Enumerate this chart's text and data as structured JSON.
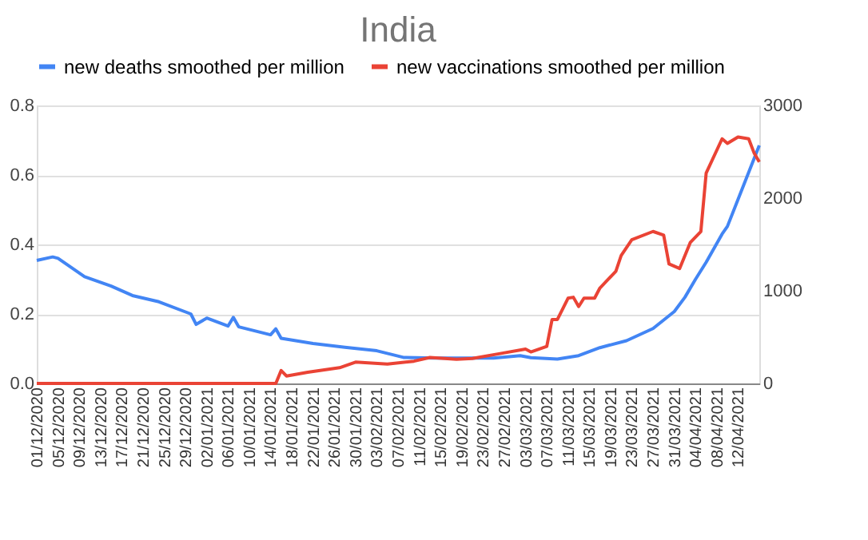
{
  "chart_data": {
    "type": "line",
    "title": "India",
    "legend": "top",
    "grid": "y",
    "marker": "none",
    "line_style": "solid",
    "xlim": [
      "2020-12-01",
      "2021-04-16"
    ],
    "xticks": [
      {
        "value": "2020-12-01",
        "label": "01/12/2020"
      },
      {
        "value": "2020-12-05",
        "label": "05/12/2020"
      },
      {
        "value": "2020-12-09",
        "label": "09/12/2020"
      },
      {
        "value": "2020-12-13",
        "label": "13/12/2020"
      },
      {
        "value": "2020-12-17",
        "label": "17/12/2020"
      },
      {
        "value": "2020-12-21",
        "label": "21/12/2020"
      },
      {
        "value": "2020-12-25",
        "label": "25/12/2020"
      },
      {
        "value": "2020-12-29",
        "label": "29/12/2020"
      },
      {
        "value": "2021-01-02",
        "label": "02/01/2021"
      },
      {
        "value": "2021-01-06",
        "label": "06/01/2021"
      },
      {
        "value": "2021-01-10",
        "label": "10/01/2021"
      },
      {
        "value": "2021-01-14",
        "label": "14/01/2021"
      },
      {
        "value": "2021-01-18",
        "label": "18/01/2021"
      },
      {
        "value": "2021-01-22",
        "label": "22/01/2021"
      },
      {
        "value": "2021-01-26",
        "label": "26/01/2021"
      },
      {
        "value": "2021-01-30",
        "label": "30/01/2021"
      },
      {
        "value": "2021-02-03",
        "label": "03/02/2021"
      },
      {
        "value": "2021-02-07",
        "label": "07/02/2021"
      },
      {
        "value": "2021-02-11",
        "label": "11/02/2021"
      },
      {
        "value": "2021-02-15",
        "label": "15/02/2021"
      },
      {
        "value": "2021-02-19",
        "label": "19/02/2021"
      },
      {
        "value": "2021-02-23",
        "label": "23/02/2021"
      },
      {
        "value": "2021-02-27",
        "label": "27/02/2021"
      },
      {
        "value": "2021-03-03",
        "label": "03/03/2021"
      },
      {
        "value": "2021-03-07",
        "label": "07/03/2021"
      },
      {
        "value": "2021-03-11",
        "label": "11/03/2021"
      },
      {
        "value": "2021-03-15",
        "label": "15/03/2021"
      },
      {
        "value": "2021-03-19",
        "label": "19/03/2021"
      },
      {
        "value": "2021-03-23",
        "label": "23/03/2021"
      },
      {
        "value": "2021-03-27",
        "label": "27/03/2021"
      },
      {
        "value": "2021-03-31",
        "label": "31/03/2021"
      },
      {
        "value": "2021-04-04",
        "label": "04/04/2021"
      },
      {
        "value": "2021-04-08",
        "label": "08/04/2021"
      },
      {
        "value": "2021-04-12",
        "label": "12/04/2021"
      }
    ],
    "ylim": [
      0,
      0.8
    ],
    "yticks": [
      {
        "value": 0,
        "label": "0.0"
      },
      {
        "value": 0.2,
        "label": "0.2"
      },
      {
        "value": 0.4,
        "label": "0.4"
      },
      {
        "value": 0.6,
        "label": "0.6"
      },
      {
        "value": 0.8,
        "label": "0.8"
      }
    ],
    "y2lim": [
      0,
      3000
    ],
    "y2ticks": [
      0,
      1000,
      2000,
      3000
    ],
    "series": [
      {
        "name": "new deaths smoothed per million",
        "color": "#4285f4",
        "x": [
          "2020-12-01",
          "2020-12-04",
          "2020-12-05",
          "2020-12-10",
          "2020-12-15",
          "2020-12-19",
          "2020-12-24",
          "2020-12-30",
          "2020-12-31",
          "2021-01-02",
          "2021-01-06",
          "2021-01-07",
          "2021-01-08",
          "2021-01-14",
          "2021-01-15",
          "2021-01-16",
          "2021-01-22",
          "2021-01-28",
          "2021-02-03",
          "2021-02-08",
          "2021-02-14",
          "2021-02-25",
          "2021-03-02",
          "2021-03-04",
          "2021-03-09",
          "2021-03-13",
          "2021-03-17",
          "2021-03-22",
          "2021-03-27",
          "2021-03-31",
          "2021-04-02",
          "2021-04-04",
          "2021-04-06",
          "2021-04-09",
          "2021-04-10",
          "2021-04-16"
        ],
        "values": [
          0.354,
          0.364,
          0.36,
          0.307,
          0.28,
          0.253,
          0.235,
          0.2,
          0.17,
          0.188,
          0.165,
          0.19,
          0.163,
          0.14,
          0.157,
          0.13,
          0.115,
          0.104,
          0.094,
          0.075,
          0.073,
          0.073,
          0.08,
          0.074,
          0.07,
          0.08,
          0.103,
          0.123,
          0.158,
          0.207,
          0.248,
          0.3,
          0.349,
          0.43,
          0.452,
          0.685
        ]
      },
      {
        "name": "new vaccinations smoothed per million",
        "color": "#ea4335",
        "axis": "y2",
        "x": [
          "2020-12-01",
          "2021-01-15",
          "2021-01-16",
          "2021-01-17",
          "2021-01-21",
          "2021-01-27",
          "2021-01-30",
          "2021-02-05",
          "2021-02-10",
          "2021-02-13",
          "2021-02-18",
          "2021-02-21",
          "2021-02-26",
          "2021-03-03",
          "2021-03-04",
          "2021-03-07",
          "2021-03-08",
          "2021-03-09",
          "2021-03-11",
          "2021-03-12",
          "2021-03-13",
          "2021-03-14",
          "2021-03-16",
          "2021-03-17",
          "2021-03-20",
          "2021-03-21",
          "2021-03-23",
          "2021-03-27",
          "2021-03-29",
          "2021-03-30",
          "2021-04-01",
          "2021-04-03",
          "2021-04-05",
          "2021-04-06",
          "2021-04-09",
          "2021-04-10",
          "2021-04-12",
          "2021-04-14",
          "2021-04-15",
          "2021-04-16"
        ],
        "values": [
          0,
          0,
          140,
          80,
          120,
          170,
          230,
          210,
          240,
          280,
          260,
          270,
          320,
          370,
          340,
          400,
          690,
          690,
          920,
          930,
          830,
          920,
          920,
          1030,
          1210,
          1380,
          1550,
          1640,
          1600,
          1290,
          1240,
          1520,
          1640,
          2270,
          2640,
          2590,
          2660,
          2640,
          2490,
          2390
        ]
      }
    ]
  }
}
